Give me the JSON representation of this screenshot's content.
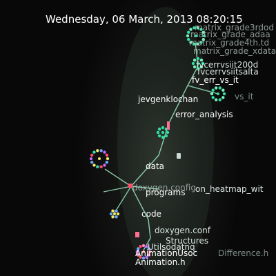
{
  "header": {
    "timestamp": "Wednesday, 06 March, 2013 08:20:15"
  },
  "visualization": {
    "author": "jevgenklochan",
    "labels": {
      "matrix_1": "matrix_grade3rdod",
      "matrix_2": "matrix_grade_adaa",
      "matrix_3": "matrix_grade4th.td",
      "matrix_4": "matrix_grade_xdata",
      "fvcerr_vs_iit200": "fvcerrvsiit200d",
      "fvcerr_vs_iit": "fvcerrvsiitsalta",
      "fv_err_vs_it": "fv_err_vs_it",
      "vs_it": "vs_it",
      "error_analysis": "error_analysis",
      "data": "data",
      "programs": "programs",
      "doxygen_config": "doxygen.config",
      "heatmap": "on_heatmap_wit",
      "code": "code",
      "doxygen_conf": "doxygen.conf",
      "structures": "Structures",
      "utils": "Utilsodatnq",
      "animation_doc": "AnimationUsoc",
      "difference": "Difference.h",
      "animation_h": "Animation.h"
    },
    "colors": {
      "edge": "#9fe8c4",
      "node_teal": "#2fe0a8",
      "node_green": "#7cf0b8",
      "node_yellow": "#f2e86a",
      "node_red": "#ff4d6a",
      "node_blue": "#6aa8ff",
      "node_purple": "#c46aff",
      "node_pink": "#ff88c8"
    }
  }
}
